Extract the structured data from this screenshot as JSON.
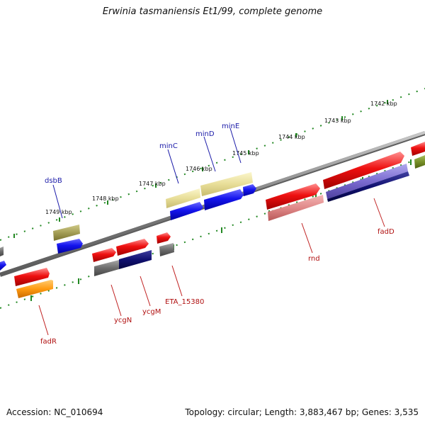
{
  "title": "Erwinia tasmaniensis Et1/99, complete genome",
  "accession": "Accession: NC_010694",
  "topology": "Topology: circular; Length: 3,883,467 bp; Genes: 3,535",
  "colors": {
    "backbone": "#8a8a8a",
    "tick_dots": "#228822",
    "label_top": "#1a1aa8",
    "label_bottom": "#b01010",
    "red_gene": "#e01010",
    "blue_gene": "#1010e0",
    "yellow_gene": "#e6dc96",
    "olive_gene": "#a09a50",
    "navy_gene": "#101070",
    "gray_gene": "#6a6a6a",
    "pink_gene": "#e08888",
    "orange_gene": "#ff9a10",
    "purple_gene": "#7a6ad0",
    "green_gene": "#789028"
  },
  "kbp_labels": [
    "1742 kbp",
    "1743 kbp",
    "1744 kbp",
    "1745 kbp",
    "1746 kbp",
    "1747 kbp",
    "1748 kbp",
    "1749 kbp"
  ],
  "top_gene_labels": [
    "minE",
    "minD",
    "minC",
    "dsbB"
  ],
  "bottom_gene_labels": [
    "fadD",
    "rnd",
    "ETA_15380",
    "ycgM",
    "ycgN",
    "fadR"
  ]
}
